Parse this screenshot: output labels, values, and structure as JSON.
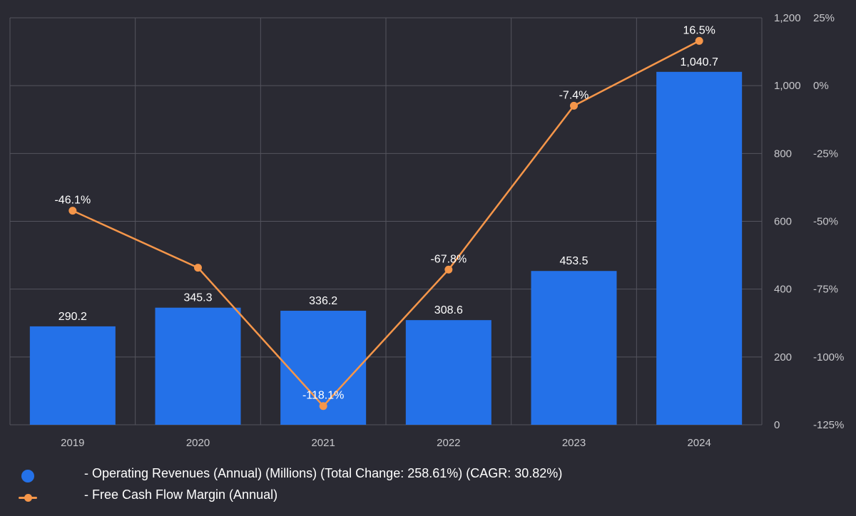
{
  "chart_data": {
    "type": "bar",
    "categories": [
      "2019",
      "2020",
      "2021",
      "2022",
      "2023",
      "2024"
    ],
    "series": [
      {
        "name": "- Operating Revenues (Annual) (Millions) (Total Change: 258.61%) (CAGR: 30.82%)",
        "type": "bar",
        "axis": "left",
        "values": [
          290.2,
          345.3,
          336.2,
          308.6,
          453.5,
          1040.7
        ],
        "labels": [
          "290.2",
          "345.3",
          "336.2",
          "308.6",
          "453.5",
          "1,040.7"
        ],
        "color": "#2471e8"
      },
      {
        "name": "- Free Cash Flow Margin (Annual)",
        "type": "line",
        "axis": "right",
        "values": [
          -46.1,
          -67.1,
          -118.1,
          -67.8,
          -7.4,
          16.5
        ],
        "labels": [
          "-46.1%",
          "",
          "-118.1%",
          "-67.8%",
          "-7.4%",
          "16.5%"
        ],
        "color": "#f5964a"
      }
    ],
    "y_left": {
      "range": [
        0,
        1200
      ],
      "ticks": [
        0,
        200,
        400,
        600,
        800,
        1000,
        1200
      ],
      "tick_labels": [
        "0",
        "200",
        "400",
        "600",
        "800",
        "1,000",
        "1,200"
      ]
    },
    "y_right": {
      "range": [
        -125,
        25
      ],
      "ticks": [
        -125,
        -100,
        -75,
        -50,
        -25,
        0,
        25
      ],
      "tick_labels": [
        "-125%",
        "-100%",
        "-75%",
        "-50%",
        "-25%",
        "0%",
        "25%"
      ]
    },
    "grid": true,
    "legend_position": "bottom-left"
  },
  "colors": {
    "background": "#2a2a33",
    "grid": "#54545e",
    "axis_text": "#c8c8cc",
    "label_text": "#ffffff"
  }
}
